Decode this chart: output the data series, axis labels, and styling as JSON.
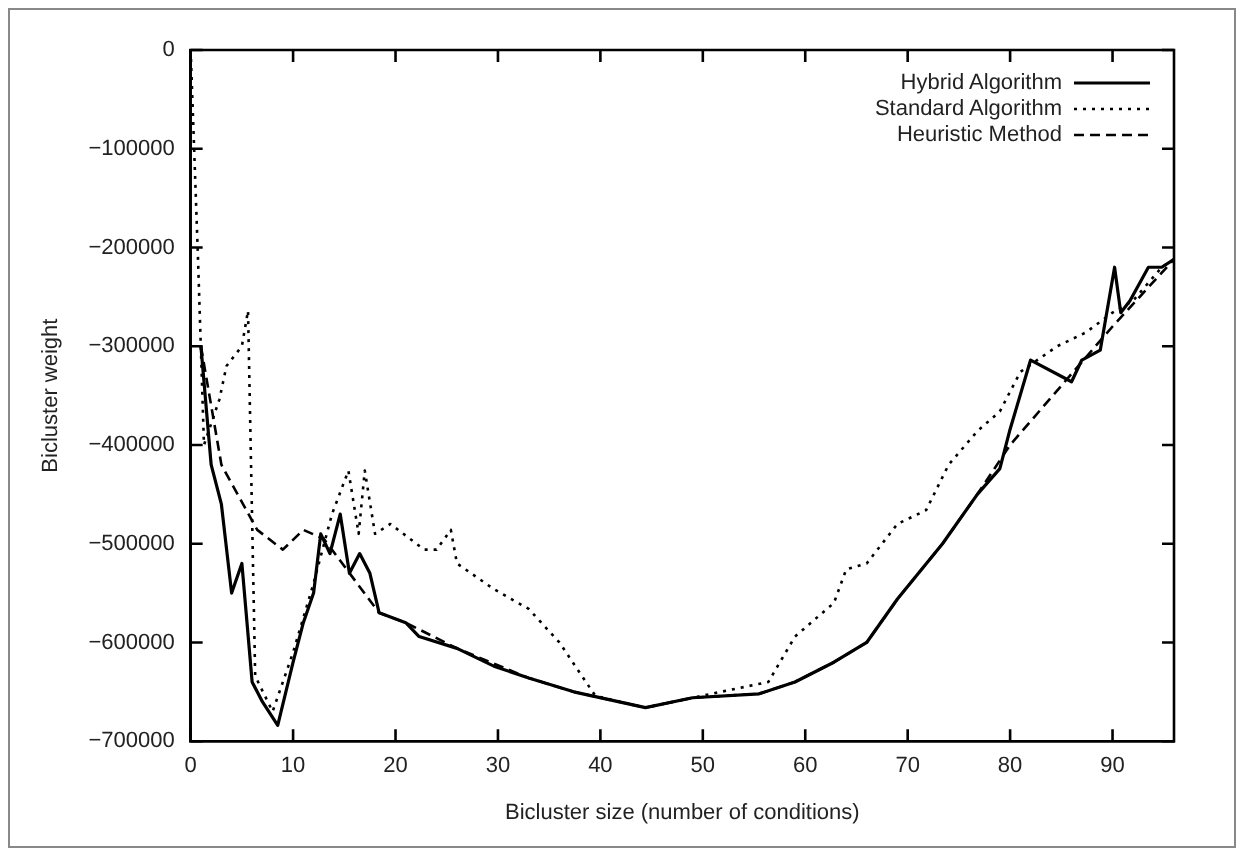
{
  "chart_data": {
    "type": "line",
    "xlabel": "Bicluster size (number of conditions)",
    "ylabel": "Bicluster weight",
    "xlim": [
      0,
      96
    ],
    "xticks": [
      0,
      10,
      20,
      30,
      40,
      50,
      60,
      70,
      80,
      90
    ],
    "ylim": [
      -700000,
      0
    ],
    "yticks": [
      -700000,
      -600000,
      -500000,
      -400000,
      -300000,
      -200000,
      -100000,
      0
    ],
    "legend": "top right",
    "marker": "none",
    "grid": false,
    "series": [
      {
        "name": "Hybrid Algorithm",
        "color": "#000000",
        "line_style": "solid",
        "x": [
          1,
          2,
          3,
          4,
          5,
          6,
          7,
          8.5,
          10,
          11,
          12,
          12.7,
          13.6,
          14.6,
          15.5,
          16.5,
          17.5,
          18.4,
          21,
          22.3,
          26,
          29.6,
          33,
          37.4,
          44.4,
          49,
          55.5,
          59,
          62.8,
          66,
          69,
          73.4,
          76.8,
          79,
          80,
          82,
          86,
          87,
          88.8,
          90.2,
          90.8,
          91.7,
          93.5,
          94.8,
          96
        ],
        "values": [
          -300000,
          -420000,
          -460000,
          -550000,
          -520000,
          -640000,
          -660000,
          -684000,
          -620000,
          -580000,
          -550000,
          -490000,
          -510000,
          -470000,
          -530000,
          -510000,
          -530000,
          -570000,
          -580000,
          -594000,
          -606000,
          -624000,
          -636000,
          -650000,
          -666000,
          -656000,
          -652000,
          -640000,
          -620000,
          -600000,
          -556000,
          -500000,
          -450000,
          -424000,
          -384000,
          -314000,
          -336000,
          -314000,
          -304000,
          -220000,
          -266000,
          -254000,
          -220000,
          -220000,
          -212000
        ]
      },
      {
        "name": "Standard Algorithm",
        "color": "#000000",
        "line_style": "dotted",
        "x": [
          0,
          0.7,
          1.3,
          2.8,
          3.5,
          5,
          5.6,
          6.3,
          8,
          10,
          12,
          13.8,
          15.4,
          16.4,
          17,
          18,
          19.5,
          22.8,
          24,
          25.4,
          26,
          29.6,
          33,
          36,
          39.5,
          44.4,
          49,
          56.4,
          59,
          62.8,
          64,
          66,
          69,
          71.8,
          74,
          76.8,
          79,
          81,
          84.6,
          87.4,
          90,
          92,
          94.8,
          96
        ],
        "values": [
          0,
          -206000,
          -400000,
          -354000,
          -320000,
          -300000,
          -264000,
          -634000,
          -670000,
          -610000,
          -540000,
          -470000,
          -426000,
          -490000,
          -426000,
          -490000,
          -480000,
          -506000,
          -506000,
          -486000,
          -520000,
          -546000,
          -566000,
          -600000,
          -654000,
          -666000,
          -656000,
          -640000,
          -594000,
          -560000,
          -526000,
          -520000,
          -480000,
          -466000,
          -420000,
          -386000,
          -366000,
          -326000,
          -300000,
          -286000,
          -266000,
          -254000,
          -220000,
          -212000
        ]
      },
      {
        "name": "Heuristic Method",
        "color": "#000000",
        "line_style": "dashed",
        "x": [
          1,
          3,
          6.5,
          9,
          11,
          13,
          18.4,
          21,
          26,
          33,
          37.4,
          44.4,
          49,
          55.5,
          59,
          62.8,
          66,
          69,
          73.4,
          76.8,
          80,
          85,
          90,
          96
        ],
        "values": [
          -300000,
          -420000,
          -486000,
          -506000,
          -486000,
          -495000,
          -570000,
          -580000,
          -606000,
          -636000,
          -650000,
          -666000,
          -656000,
          -652000,
          -640000,
          -620000,
          -600000,
          -556000,
          -500000,
          -450000,
          -400000,
          -340000,
          -280000,
          -212000
        ]
      }
    ]
  }
}
